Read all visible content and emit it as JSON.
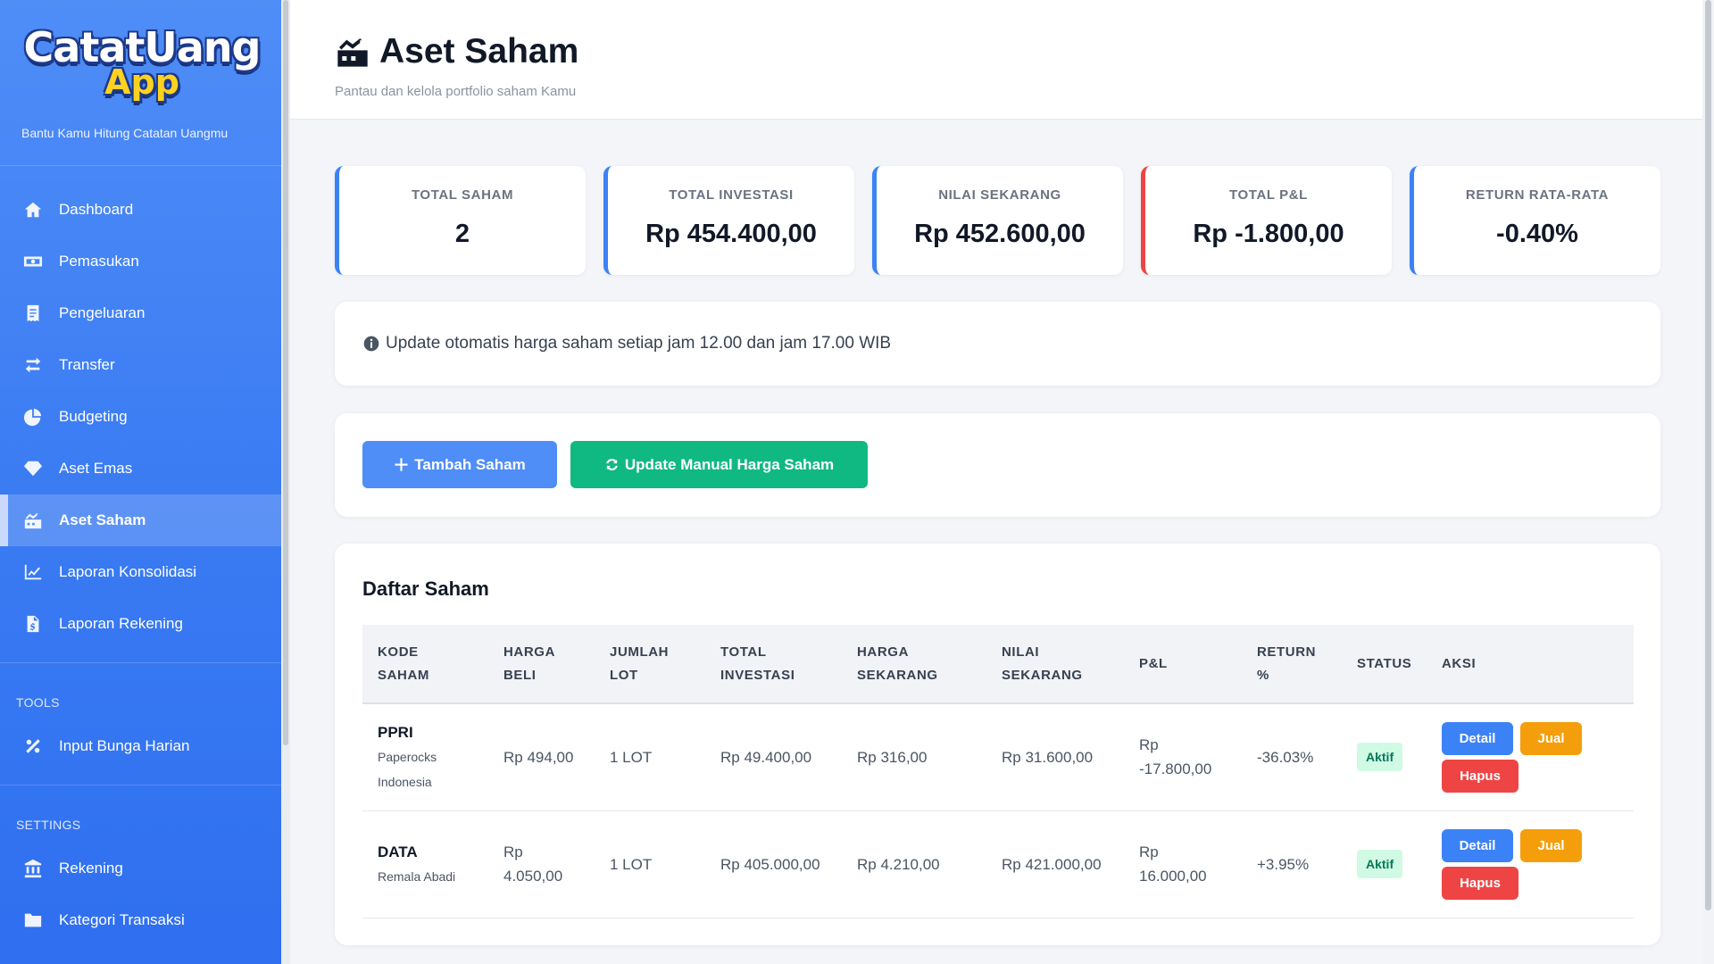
{
  "sidebar": {
    "brand_line1": "CatatUang",
    "brand_line2": "App",
    "tagline": "Bantu Kamu Hitung Catatan Uangmu",
    "items": [
      {
        "label": "Dashboard",
        "icon": "home-icon"
      },
      {
        "label": "Pemasukan",
        "icon": "money-icon"
      },
      {
        "label": "Pengeluaran",
        "icon": "receipt-icon"
      },
      {
        "label": "Transfer",
        "icon": "transfer-icon"
      },
      {
        "label": "Budgeting",
        "icon": "pie-icon"
      },
      {
        "label": "Aset Emas",
        "icon": "gem-icon"
      },
      {
        "label": "Aset Saham",
        "icon": "stock-icon",
        "active": true
      },
      {
        "label": "Laporan Konsolidasi",
        "icon": "line-chart-icon"
      },
      {
        "label": "Laporan Rekening",
        "icon": "file-invoice-icon"
      }
    ],
    "tools_title": "TOOLS",
    "tools_items": [
      {
        "label": "Input Bunga Harian",
        "icon": "percent-icon"
      }
    ],
    "settings_title": "SETTINGS",
    "settings_items": [
      {
        "label": "Rekening",
        "icon": "bank-icon"
      },
      {
        "label": "Kategori Transaksi",
        "icon": "folder-icon"
      }
    ]
  },
  "header": {
    "title": "Aset Saham",
    "subtitle": "Pantau dan kelola portfolio saham Kamu"
  },
  "stats": [
    {
      "label": "TOTAL SAHAM",
      "value": "2"
    },
    {
      "label": "TOTAL INVESTASI",
      "value": "Rp 454.400,00"
    },
    {
      "label": "NILAI SEKARANG",
      "value": "Rp 452.600,00"
    },
    {
      "label": "TOTAL P&L",
      "value": "Rp -1.800,00"
    },
    {
      "label": "RETURN RATA-RATA",
      "value": "-0.40%"
    }
  ],
  "info_text": "Update otomatis harga saham setiap jam 12.00 dan jam 17.00 WIB",
  "actions": {
    "add_label": "Tambah Saham",
    "update_label": "Update Manual Harga Saham"
  },
  "table": {
    "title": "Daftar Saham",
    "headers": [
      [
        "KODE",
        "SAHAM"
      ],
      [
        "HARGA",
        "BELI"
      ],
      [
        "JUMLAH",
        "LOT"
      ],
      [
        "TOTAL",
        "INVESTASI"
      ],
      [
        "HARGA",
        "SEKARANG"
      ],
      [
        "NILAI",
        "SEKARANG"
      ],
      [
        "P&L",
        ""
      ],
      [
        "RETURN",
        "%"
      ],
      [
        "STATUS",
        ""
      ],
      [
        "AKSI",
        ""
      ]
    ],
    "rows": [
      {
        "code": "PPRI",
        "name_line1": "Paperocks",
        "name_line2": "Indonesia",
        "buy_line1": "Rp 494,00",
        "buy_line2": "",
        "lot": "1 LOT",
        "total": "Rp 49.400,00",
        "current_price": "Rp 316,00",
        "current_value": "Rp 31.600,00",
        "pl_line1": "Rp",
        "pl_line2": "-17.800,00",
        "return": "-36.03%",
        "status": "Aktif"
      },
      {
        "code": "DATA",
        "name_line1": "Remala Abadi",
        "name_line2": "",
        "buy_line1": "Rp",
        "buy_line2": "4.050,00",
        "lot": "1 LOT",
        "total": "Rp 405.000,00",
        "current_price": "Rp 4.210,00",
        "current_value": "Rp 421.000,00",
        "pl_line1": "Rp",
        "pl_line2": "16.000,00",
        "return": "+3.95%",
        "status": "Aktif"
      }
    ],
    "btn_detail": "Detail",
    "btn_jual": "Jual",
    "btn_hapus": "Hapus"
  }
}
